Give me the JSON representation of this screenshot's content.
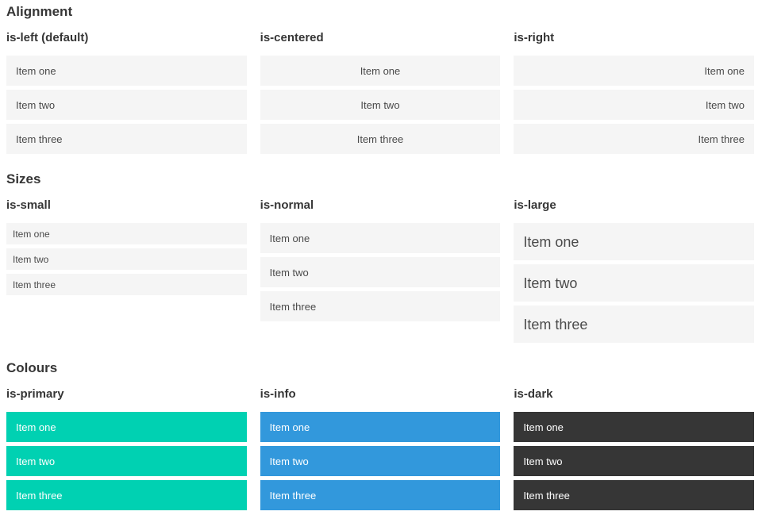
{
  "sections": [
    {
      "title": "Alignment",
      "columns": [
        {
          "label": "is-left (default)",
          "items": [
            "Item one",
            "Item two",
            "Item three"
          ]
        },
        {
          "label": "is-centered",
          "items": [
            "Item one",
            "Item two",
            "Item three"
          ]
        },
        {
          "label": "is-right",
          "items": [
            "Item one",
            "Item two",
            "Item three"
          ]
        }
      ]
    },
    {
      "title": "Sizes",
      "columns": [
        {
          "label": "is-small",
          "items": [
            "Item one",
            "Item two",
            "Item three"
          ]
        },
        {
          "label": "is-normal",
          "items": [
            "Item one",
            "Item two",
            "Item three"
          ]
        },
        {
          "label": "is-large",
          "items": [
            "Item one",
            "Item two",
            "Item three"
          ]
        }
      ]
    },
    {
      "title": "Colours",
      "columns": [
        {
          "label": "is-primary",
          "items": [
            "Item one",
            "Item two",
            "Item three"
          ]
        },
        {
          "label": "is-info",
          "items": [
            "Item one",
            "Item two",
            "Item three"
          ]
        },
        {
          "label": "is-dark",
          "items": [
            "Item one",
            "Item two",
            "Item three"
          ]
        }
      ]
    }
  ],
  "colors": {
    "primary": "#00d1b2",
    "info": "#3298dc",
    "dark": "#363636",
    "item_bg": "#f5f5f5",
    "item_text": "#4a4a4a",
    "heading_text": "#363636",
    "colored_item_text": "#ffffff"
  }
}
